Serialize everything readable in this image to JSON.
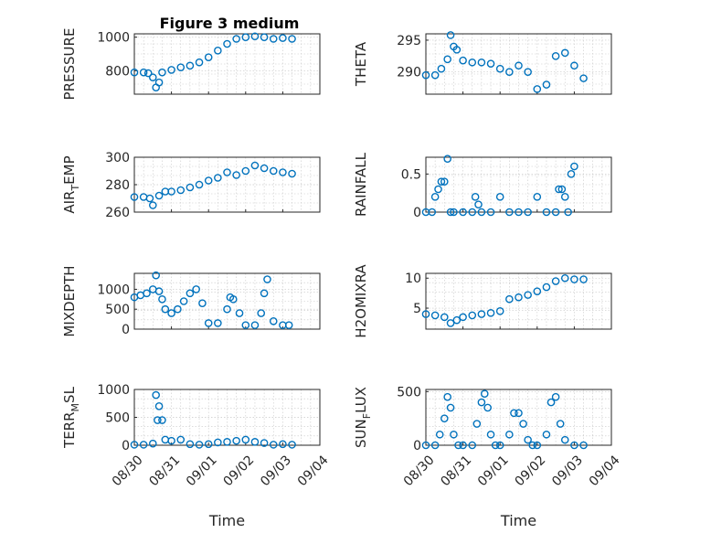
{
  "figure_title": "Figure 3 medium",
  "chart_data": [
    {
      "type": "scatter",
      "title": "Figure 3 medium",
      "ylabel": "PRESSURE",
      "ylabel_sub": "",
      "xlabel": "",
      "xlim": [
        "08/30",
        "09/04"
      ],
      "ylim": [
        660,
        1020
      ],
      "yticks": [
        800,
        1000
      ],
      "grid": true,
      "minor_grid": true,
      "x": [
        "08/30 00:00",
        "08/30 06:00",
        "08/30 09:00",
        "08/30 12:00",
        "08/30 14:00",
        "08/30 16:00",
        "08/30 18:00",
        "08/31 00:00",
        "08/31 06:00",
        "08/31 12:00",
        "08/31 18:00",
        "09/01 00:00",
        "09/01 06:00",
        "09/01 12:00",
        "09/01 18:00",
        "09/02 00:00",
        "09/02 06:00",
        "09/02 12:00",
        "09/02 18:00",
        "09/03 00:00",
        "09/03 06:00"
      ],
      "y": [
        790,
        790,
        785,
        760,
        700,
        730,
        790,
        805,
        820,
        830,
        850,
        880,
        920,
        960,
        990,
        1000,
        1005,
        1000,
        990,
        995,
        990
      ]
    },
    {
      "type": "scatter",
      "title": "",
      "ylabel": "THETA",
      "ylabel_sub": "",
      "xlabel": "",
      "xlim": [
        "08/30",
        "09/04"
      ],
      "ylim": [
        286.5,
        296
      ],
      "yticks": [
        290,
        295
      ],
      "grid": true,
      "minor_grid": true,
      "x": [
        "08/30 00:00",
        "08/30 06:00",
        "08/30 10:00",
        "08/30 14:00",
        "08/30 16:00",
        "08/30 18:00",
        "08/30 20:00",
        "08/31 00:00",
        "08/31 06:00",
        "08/31 12:00",
        "08/31 18:00",
        "09/01 00:00",
        "09/01 06:00",
        "09/01 12:00",
        "09/01 18:00",
        "09/02 00:00",
        "09/02 06:00",
        "09/02 12:00",
        "09/02 18:00",
        "09/03 00:00",
        "09/03 06:00"
      ],
      "y": [
        289.5,
        289.5,
        290.5,
        292,
        295.8,
        294,
        293.5,
        291.8,
        291.5,
        291.5,
        291.3,
        290.5,
        290,
        291,
        290,
        287.3,
        288,
        292.5,
        293,
        291,
        289
      ]
    },
    {
      "type": "scatter",
      "title": "",
      "ylabel": "AIR",
      "ylabel_sub": "T",
      "ylabel_rest": "EMP",
      "xlabel": "",
      "xlim": [
        "08/30",
        "09/04"
      ],
      "ylim": [
        260,
        300
      ],
      "yticks": [
        260,
        280,
        300
      ],
      "grid": true,
      "minor_grid": true,
      "x": [
        "08/30 00:00",
        "08/30 06:00",
        "08/30 10:00",
        "08/30 12:00",
        "08/30 16:00",
        "08/30 20:00",
        "08/31 00:00",
        "08/31 06:00",
        "08/31 12:00",
        "08/31 18:00",
        "09/01 00:00",
        "09/01 06:00",
        "09/01 12:00",
        "09/01 18:00",
        "09/02 00:00",
        "09/02 06:00",
        "09/02 12:00",
        "09/02 18:00",
        "09/03 00:00",
        "09/03 06:00"
      ],
      "y": [
        271,
        271,
        270,
        265,
        272,
        275,
        275,
        276,
        278,
        280,
        283,
        285,
        289,
        287,
        290,
        294,
        292,
        290,
        289,
        288
      ]
    },
    {
      "type": "scatter",
      "title": "",
      "ylabel": "RAINFALL",
      "ylabel_sub": "",
      "xlabel": "",
      "xlim": [
        "08/30",
        "09/04"
      ],
      "ylim": [
        0,
        0.72
      ],
      "yticks": [
        0,
        0.5
      ],
      "grid": true,
      "minor_grid": true,
      "x": [
        "08/30 00:00",
        "08/30 04:00",
        "08/30 06:00",
        "08/30 08:00",
        "08/30 10:00",
        "08/30 12:00",
        "08/30 14:00",
        "08/30 16:00",
        "08/30 18:00",
        "08/31 00:00",
        "08/31 06:00",
        "08/31 08:00",
        "08/31 10:00",
        "08/31 12:00",
        "08/31 18:00",
        "09/01 00:00",
        "09/01 06:00",
        "09/01 12:00",
        "09/01 18:00",
        "09/02 00:00",
        "09/02 06:00",
        "09/02 12:00",
        "09/02 14:00",
        "09/02 16:00",
        "09/02 18:00",
        "09/02 20:00",
        "09/02 22:00",
        "09/03 00:00"
      ],
      "y": [
        0,
        0,
        0.2,
        0.3,
        0.4,
        0.4,
        0.7,
        0,
        0,
        0,
        0,
        0.2,
        0.1,
        0,
        0,
        0.2,
        0,
        0,
        0,
        0.2,
        0,
        0,
        0.3,
        0.3,
        0.2,
        0,
        0.5,
        0.6
      ]
    },
    {
      "type": "scatter",
      "title": "",
      "ylabel": "MIXDEPTH",
      "ylabel_sub": "",
      "xlabel": "",
      "xlim": [
        "08/30",
        "09/04"
      ],
      "ylim": [
        0,
        1400
      ],
      "yticks": [
        0,
        500,
        1000
      ],
      "grid": true,
      "minor_grid": true,
      "x": [
        "08/30 00:00",
        "08/30 04:00",
        "08/30 08:00",
        "08/30 12:00",
        "08/30 14:00",
        "08/30 16:00",
        "08/30 18:00",
        "08/30 20:00",
        "08/31 00:00",
        "08/31 04:00",
        "08/31 08:00",
        "08/31 12:00",
        "08/31 16:00",
        "08/31 20:00",
        "09/01 00:00",
        "09/01 06:00",
        "09/01 12:00",
        "09/01 14:00",
        "09/01 16:00",
        "09/01 20:00",
        "09/02 00:00",
        "09/02 06:00",
        "09/02 10:00",
        "09/02 12:00",
        "09/02 14:00",
        "09/02 18:00",
        "09/03 00:00",
        "09/03 04:00"
      ],
      "y": [
        800,
        850,
        900,
        1000,
        1350,
        950,
        750,
        500,
        400,
        500,
        700,
        900,
        1000,
        650,
        150,
        150,
        500,
        800,
        750,
        400,
        100,
        100,
        400,
        900,
        1250,
        200,
        100,
        100
      ]
    },
    {
      "type": "scatter",
      "title": "",
      "ylabel": "H2OMIXRA",
      "ylabel_sub": "",
      "xlabel": "",
      "xlim": [
        "08/30",
        "09/04"
      ],
      "ylim": [
        1.5,
        10.8
      ],
      "yticks": [
        5,
        10
      ],
      "grid": true,
      "minor_grid": true,
      "x": [
        "08/30 00:00",
        "08/30 06:00",
        "08/30 12:00",
        "08/30 16:00",
        "08/30 20:00",
        "08/31 00:00",
        "08/31 06:00",
        "08/31 12:00",
        "08/31 18:00",
        "09/01 00:00",
        "09/01 06:00",
        "09/01 12:00",
        "09/01 18:00",
        "09/02 00:00",
        "09/02 06:00",
        "09/02 12:00",
        "09/02 18:00",
        "09/03 00:00",
        "09/03 06:00"
      ],
      "y": [
        4,
        3.8,
        3.5,
        2.5,
        3,
        3.5,
        3.8,
        4,
        4.2,
        4.5,
        6.5,
        6.8,
        7.2,
        7.8,
        8.5,
        9.5,
        10,
        9.8,
        9.8
      ]
    },
    {
      "type": "scatter",
      "title": "",
      "ylabel": "TERR",
      "ylabel_sub": "M",
      "ylabel_rest": "SL",
      "xlabel": "Time",
      "xlim": [
        "08/30",
        "09/04"
      ],
      "xticks": [
        "08/30",
        "08/31",
        "09/01",
        "09/02",
        "09/03",
        "09/04"
      ],
      "ylim": [
        0,
        1000
      ],
      "yticks": [
        0,
        500,
        1000
      ],
      "grid": true,
      "minor_grid": true,
      "x": [
        "08/30 00:00",
        "08/30 06:00",
        "08/30 12:00",
        "08/30 14:00",
        "08/30 15:00",
        "08/30 16:00",
        "08/30 18:00",
        "08/30 20:00",
        "08/31 00:00",
        "08/31 06:00",
        "08/31 12:00",
        "08/31 18:00",
        "09/01 00:00",
        "09/01 06:00",
        "09/01 12:00",
        "09/01 18:00",
        "09/02 00:00",
        "09/02 06:00",
        "09/02 12:00",
        "09/02 18:00",
        "09/03 00:00",
        "09/03 06:00"
      ],
      "y": [
        10,
        10,
        30,
        900,
        450,
        700,
        450,
        100,
        80,
        100,
        20,
        10,
        20,
        50,
        60,
        80,
        100,
        60,
        40,
        10,
        20,
        10
      ]
    },
    {
      "type": "scatter",
      "title": "",
      "ylabel": "SUN",
      "ylabel_sub": "F",
      "ylabel_rest": "LUX",
      "xlabel": "Time",
      "xlim": [
        "08/30",
        "09/04"
      ],
      "xticks": [
        "08/30",
        "08/31",
        "09/01",
        "09/02",
        "09/03",
        "09/04"
      ],
      "ylim": [
        0,
        520
      ],
      "yticks": [
        0,
        500
      ],
      "grid": true,
      "minor_grid": true,
      "x": [
        "08/30 00:00",
        "08/30 06:00",
        "08/30 09:00",
        "08/30 12:00",
        "08/30 14:00",
        "08/30 16:00",
        "08/30 18:00",
        "08/30 21:00",
        "08/31 00:00",
        "08/31 06:00",
        "08/31 09:00",
        "08/31 12:00",
        "08/31 14:00",
        "08/31 16:00",
        "08/31 18:00",
        "08/31 21:00",
        "09/01 00:00",
        "09/01 06:00",
        "09/01 09:00",
        "09/01 12:00",
        "09/01 15:00",
        "09/01 18:00",
        "09/01 21:00",
        "09/02 00:00",
        "09/02 06:00",
        "09/02 09:00",
        "09/02 12:00",
        "09/02 15:00",
        "09/02 18:00",
        "09/03 00:00",
        "09/03 06:00"
      ],
      "y": [
        0,
        0,
        100,
        250,
        450,
        350,
        100,
        0,
        0,
        0,
        200,
        400,
        480,
        350,
        100,
        0,
        0,
        100,
        300,
        300,
        200,
        50,
        0,
        0,
        100,
        400,
        450,
        200,
        50,
        0,
        0
      ]
    }
  ]
}
